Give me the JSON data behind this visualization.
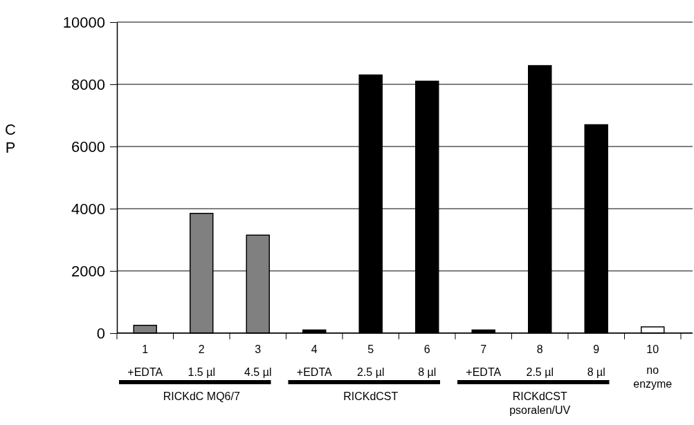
{
  "chart_data": {
    "type": "bar",
    "ylabel": "CP",
    "categories": [
      "1",
      "2",
      "3",
      "4",
      "5",
      "6",
      "7",
      "8",
      "9",
      "10"
    ],
    "values": [
      250,
      3850,
      3150,
      100,
      8300,
      8100,
      100,
      8600,
      6700,
      200
    ],
    "colors": [
      "#808080",
      "#808080",
      "#808080",
      "#000000",
      "#000000",
      "#000000",
      "#000000",
      "#000000",
      "#000000",
      "#ffffff"
    ],
    "ylim": [
      0,
      10000
    ],
    "yticks": [
      0,
      2000,
      4000,
      6000,
      8000,
      10000
    ],
    "grid": "y",
    "annotations": [
      "+EDTA",
      "1.5 µl",
      "4.5 µl",
      "+EDTA",
      "2.5 µl",
      "8 µl",
      "+EDTA",
      "2.5 µl",
      "8 µl",
      "no\nenzyme",
      "RICKdC MQ6/7",
      "RICKdCST",
      "RICKdCST\npsoralen/UV"
    ]
  }
}
